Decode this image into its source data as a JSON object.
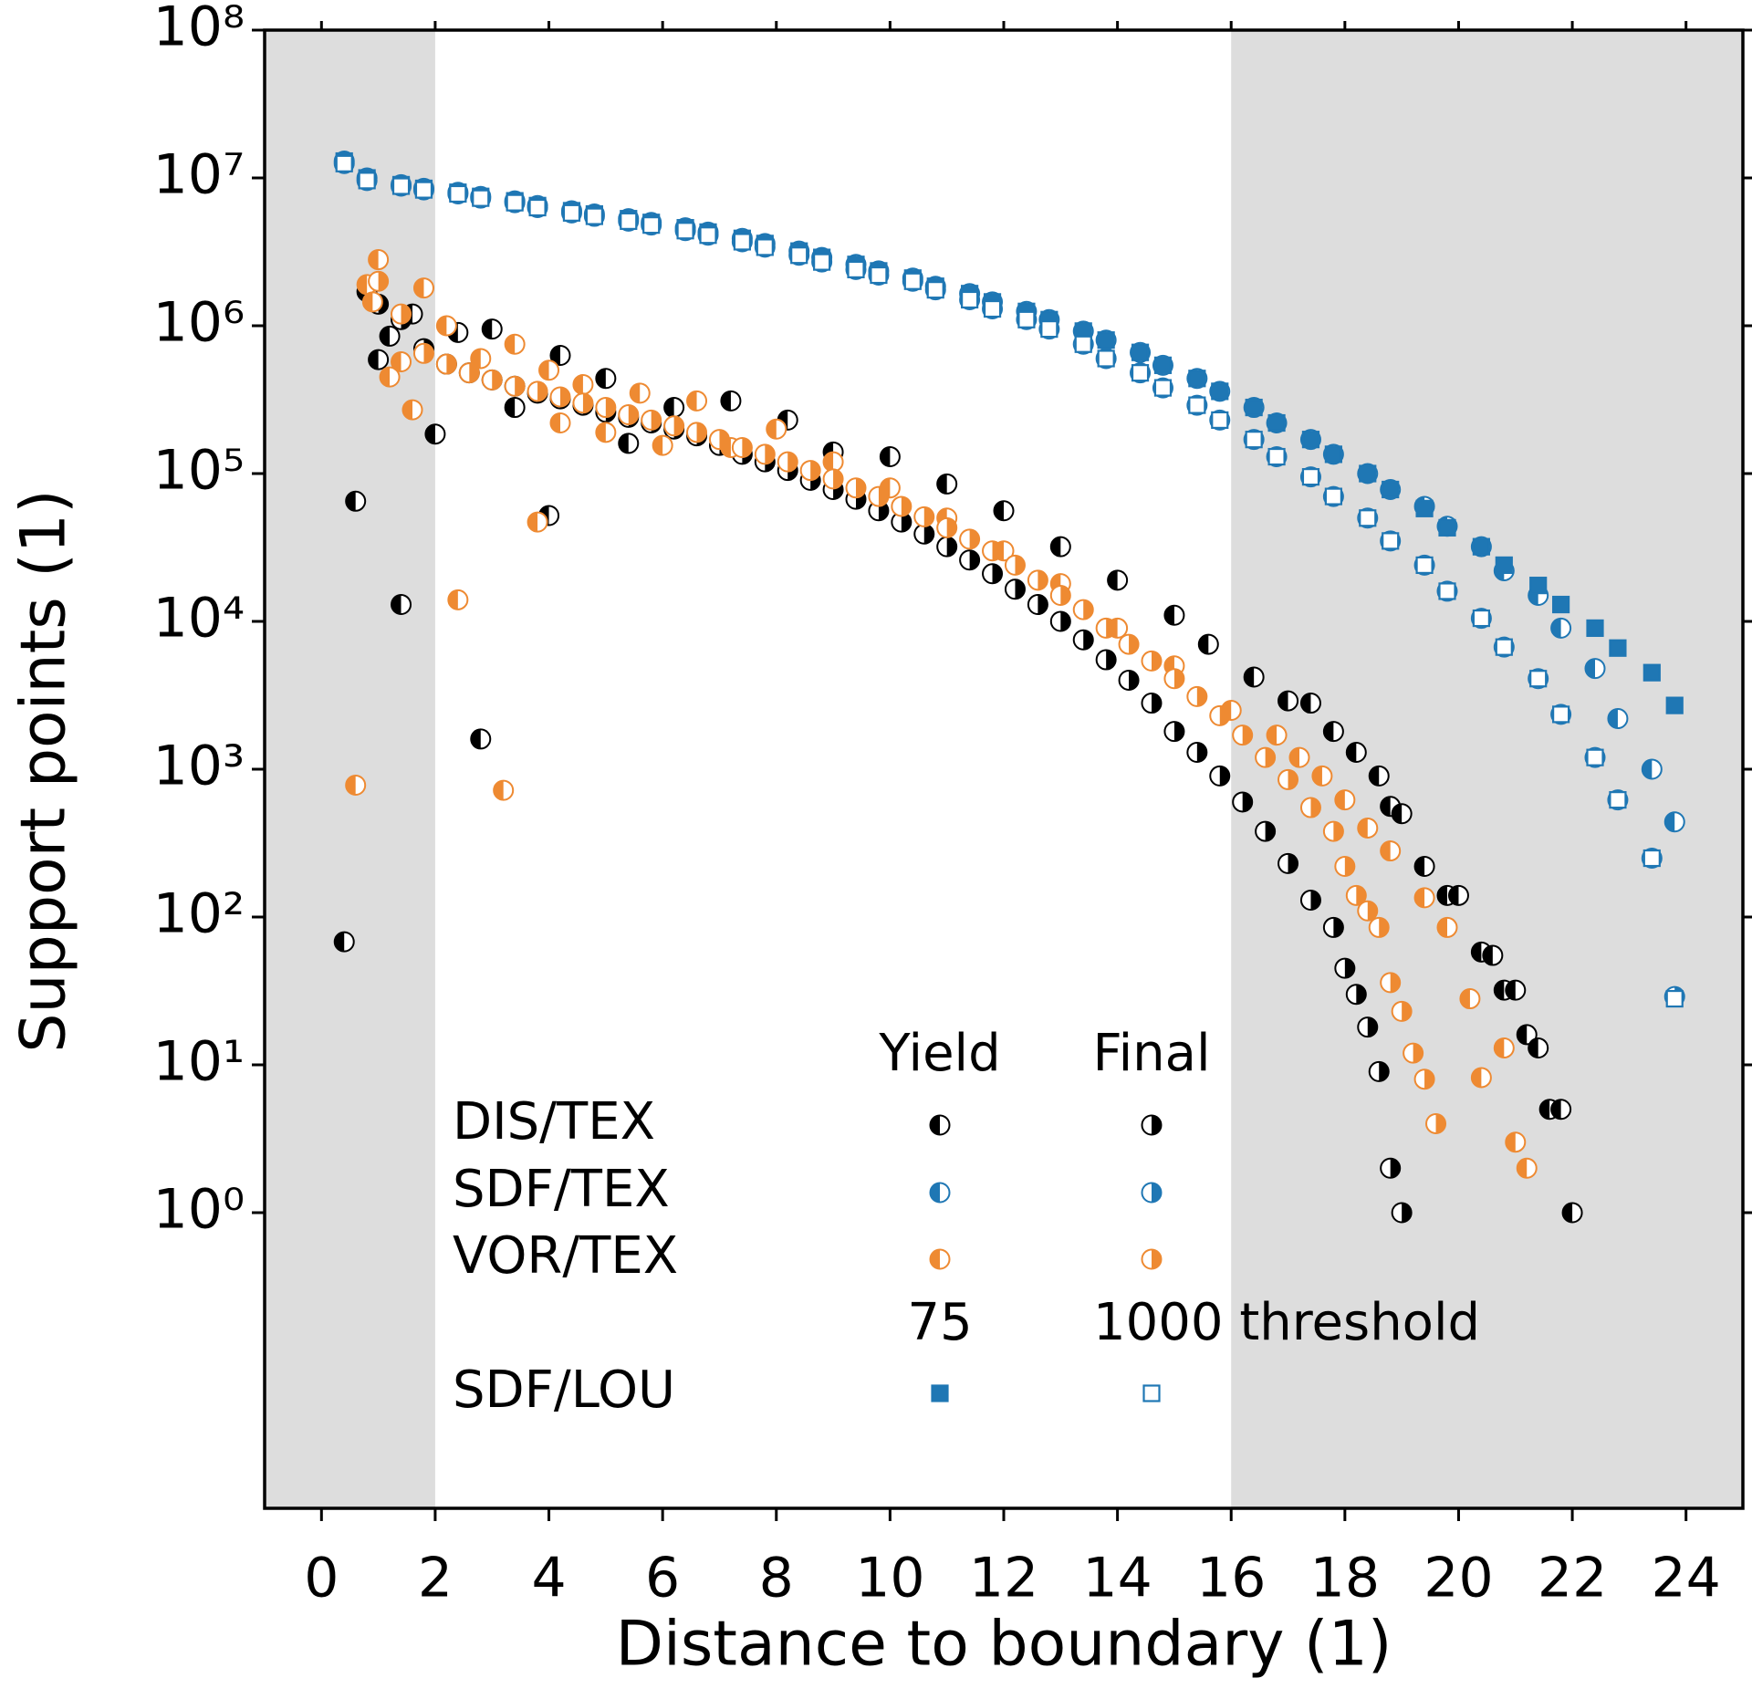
{
  "chart_data": {
    "type": "scatter",
    "xlabel": "Distance to boundary (1)",
    "ylabel": "Support points (1)",
    "xlim": [
      -1,
      25
    ],
    "ylim": [
      0.01,
      100000000
    ],
    "log_y": true,
    "xticks": [
      0,
      2,
      4,
      6,
      8,
      10,
      12,
      14,
      16,
      18,
      20,
      22,
      24
    ],
    "yticks": [
      {
        "value": 1,
        "label": "10⁰"
      },
      {
        "value": 10,
        "label": "10¹"
      },
      {
        "value": 100,
        "label": "10²"
      },
      {
        "value": 1000,
        "label": "10³"
      },
      {
        "value": 10000,
        "label": "10⁴"
      },
      {
        "value": 100000,
        "label": "10⁵"
      },
      {
        "value": 1000000,
        "label": "10⁶"
      },
      {
        "value": 10000000,
        "label": "10⁷"
      },
      {
        "value": 100000000,
        "label": "10⁸"
      }
    ],
    "shaded_regions": [
      [
        -1,
        2
      ],
      [
        16,
        25
      ]
    ],
    "shade_color": "#dddddd",
    "series": [
      {
        "name": "SDF/TEX",
        "variant": "Yield",
        "color": "#1f77b4",
        "marker": "circle",
        "fill": "left",
        "x": [
          0.4,
          0.8,
          1.4,
          1.8,
          2.4,
          2.8,
          3.4,
          3.8,
          4.4,
          4.8,
          5.4,
          5.8,
          6.4,
          6.8,
          7.4,
          7.8,
          8.4,
          8.8,
          9.4,
          9.8,
          10.4,
          10.8,
          11.4,
          11.8,
          12.4,
          12.8,
          13.4,
          13.8,
          14.4,
          14.8,
          15.4,
          15.8,
          16.4,
          16.8,
          17.4,
          17.8,
          18.4,
          18.8,
          19.4,
          19.8,
          20.4,
          20.8,
          21.4,
          21.8,
          22.4,
          22.8,
          23.4,
          23.8
        ],
        "values": [
          13000000,
          10000000,
          9000000,
          8500000,
          8000000,
          7500000,
          7000000,
          6500000,
          6000000,
          5700000,
          5300000,
          5000000,
          4600000,
          4300000,
          3900000,
          3600000,
          3200000,
          2900000,
          2600000,
          2350000,
          2100000,
          1850000,
          1650000,
          1450000,
          1250000,
          1100000,
          920000,
          800000,
          660000,
          540000,
          440000,
          360000,
          280000,
          220000,
          170000,
          135000,
          100000,
          78000,
          60000,
          44000,
          32000,
          22000,
          15000,
          9000,
          4800,
          2200,
          1000,
          440
        ]
      },
      {
        "name": "SDF/TEX",
        "variant": "Final",
        "color": "#1f77b4",
        "marker": "circle",
        "fill": "right",
        "x": [
          0.4,
          0.8,
          1.4,
          1.8,
          2.4,
          2.8,
          3.4,
          3.8,
          4.4,
          4.8,
          5.4,
          5.8,
          6.4,
          6.8,
          7.4,
          7.8,
          8.4,
          8.8,
          9.4,
          9.8,
          10.4,
          10.8,
          11.4,
          11.8,
          12.4,
          12.8,
          13.4,
          13.8,
          14.4,
          14.8,
          15.4,
          15.8,
          16.4,
          16.8,
          17.4,
          17.8,
          18.4,
          18.8,
          19.4,
          19.8,
          20.4,
          20.8,
          21.4,
          21.8,
          22.4,
          22.8,
          23.4,
          23.8
        ],
        "values": [
          12500000,
          9600000,
          8800000,
          8300000,
          7800000,
          7300000,
          6800000,
          6300000,
          5800000,
          5500000,
          5100000,
          4800000,
          4400000,
          4100000,
          3700000,
          3400000,
          3000000,
          2700000,
          2400000,
          2200000,
          2000000,
          1750000,
          1500000,
          1300000,
          1100000,
          950000,
          750000,
          600000,
          480000,
          380000,
          290000,
          230000,
          170000,
          130000,
          95000,
          70000,
          50000,
          35000,
          24000,
          16000,
          10500,
          6700,
          4100,
          2350,
          1200,
          620,
          250,
          29
        ]
      },
      {
        "name": "SDF/LOU",
        "variant": "75",
        "color": "#1f77b4",
        "marker": "square",
        "fill": "full",
        "x": [
          0.4,
          0.8,
          1.4,
          1.8,
          2.4,
          2.8,
          3.4,
          3.8,
          4.4,
          4.8,
          5.4,
          5.8,
          6.4,
          6.8,
          7.4,
          7.8,
          8.4,
          8.8,
          9.4,
          9.8,
          10.4,
          10.8,
          11.4,
          11.8,
          12.4,
          12.8,
          13.4,
          13.8,
          14.4,
          14.8,
          15.4,
          15.8,
          16.4,
          16.8,
          17.4,
          17.8,
          18.4,
          18.8,
          19.4,
          19.8,
          20.4,
          20.8,
          21.4,
          21.8,
          22.4,
          22.8,
          23.4,
          23.8
        ],
        "values": [
          13000000,
          10000000,
          9000000,
          8500000,
          8000000,
          7500000,
          7000000,
          6500000,
          6000000,
          5700000,
          5300000,
          5000000,
          4600000,
          4300000,
          3900000,
          3600000,
          3200000,
          2900000,
          2600000,
          2350000,
          2100000,
          1850000,
          1650000,
          1450000,
          1250000,
          1100000,
          920000,
          800000,
          660000,
          540000,
          440000,
          360000,
          280000,
          220000,
          170000,
          135000,
          100000,
          78000,
          58000,
          43000,
          32000,
          24000,
          17500,
          13000,
          9000,
          6600,
          4500,
          2700
        ]
      },
      {
        "name": "SDF/LOU",
        "variant": "1000 threshold",
        "color": "#1f77b4",
        "marker": "square",
        "fill": "none",
        "x": [
          0.4,
          0.8,
          1.4,
          1.8,
          2.4,
          2.8,
          3.4,
          3.8,
          4.4,
          4.8,
          5.4,
          5.8,
          6.4,
          6.8,
          7.4,
          7.8,
          8.4,
          8.8,
          9.4,
          9.8,
          10.4,
          10.8,
          11.4,
          11.8,
          12.4,
          12.8,
          13.4,
          13.8,
          14.4,
          14.8,
          15.4,
          15.8,
          16.4,
          16.8,
          17.4,
          17.8,
          18.4,
          18.8,
          19.4,
          19.8,
          20.4,
          20.8,
          21.4,
          21.8,
          22.4,
          22.8,
          23.4,
          23.8
        ],
        "values": [
          12500000,
          9600000,
          8800000,
          8300000,
          7800000,
          7300000,
          6800000,
          6300000,
          5800000,
          5500000,
          5100000,
          4800000,
          4400000,
          4100000,
          3700000,
          3400000,
          3000000,
          2700000,
          2400000,
          2200000,
          2000000,
          1750000,
          1500000,
          1300000,
          1100000,
          950000,
          750000,
          600000,
          480000,
          380000,
          290000,
          230000,
          170000,
          130000,
          95000,
          70000,
          50000,
          35000,
          24000,
          16000,
          10500,
          6700,
          4100,
          2350,
          1200,
          620,
          250,
          28
        ]
      },
      {
        "name": "DIS/TEX",
        "variant": "Yield",
        "color": "#000000",
        "marker": "circle",
        "fill": "left",
        "x": [
          0.4,
          0.6,
          0.8,
          1.0,
          1.2,
          1.4,
          1.6,
          2.0,
          2.4,
          2.8,
          3.0,
          3.4,
          4.0,
          4.2,
          5.0,
          5.4,
          6.2,
          7.2,
          8.2,
          9.0,
          10.0,
          11.0,
          12.0,
          13.0,
          14.0,
          15.0,
          15.6,
          16.4,
          17.0,
          17.4,
          17.8,
          18.2,
          18.6,
          18.8,
          19.0,
          19.4,
          19.8,
          20.0,
          20.4,
          20.6,
          20.8,
          21.0,
          21.2,
          21.4,
          21.6,
          21.8,
          22.0
        ],
        "values": [
          68,
          65000,
          1700000,
          590000,
          850000,
          13000,
          1200000,
          185000,
          900000,
          1600,
          950000,
          280000,
          52000,
          630000,
          440000,
          160000,
          280000,
          310000,
          230000,
          140000,
          130000,
          85000,
          56000,
          32000,
          19000,
          11000,
          7000,
          4200,
          2900,
          2800,
          1800,
          1300,
          900,
          560,
          500,
          220,
          140,
          140,
          58,
          55,
          32,
          32,
          16,
          13,
          5,
          5,
          1
        ]
      },
      {
        "name": "DIS/TEX",
        "variant": "Final",
        "color": "#000000",
        "marker": "circle",
        "fill": "right",
        "x": [
          1.0,
          1.4,
          1.8,
          2.2,
          2.6,
          3.0,
          3.4,
          3.8,
          4.2,
          4.6,
          5.0,
          5.4,
          5.8,
          6.2,
          6.6,
          7.0,
          7.4,
          7.8,
          8.2,
          8.6,
          9.0,
          9.4,
          9.8,
          10.2,
          10.6,
          11.0,
          11.4,
          11.8,
          12.2,
          12.6,
          13.0,
          13.4,
          13.8,
          14.2,
          14.6,
          15.0,
          15.4,
          15.8,
          16.2,
          16.6,
          17.0,
          17.4,
          17.8,
          18.0,
          18.2,
          18.4,
          18.6,
          18.8,
          19.0
        ],
        "values": [
          1400000,
          1100000,
          700000,
          550000,
          480000,
          430000,
          390000,
          350000,
          320000,
          290000,
          260000,
          240000,
          220000,
          200000,
          180000,
          155000,
          135000,
          120000,
          105000,
          90000,
          78000,
          67000,
          56000,
          47000,
          39000,
          32000,
          26000,
          21000,
          16500,
          13000,
          10000,
          7500,
          5500,
          4000,
          2800,
          1800,
          1300,
          900,
          600,
          380,
          230,
          130,
          85,
          45,
          30,
          18,
          9,
          2,
          1
        ]
      },
      {
        "name": "VOR/TEX",
        "variant": "Yield",
        "color": "#ee8a32",
        "marker": "circle",
        "fill": "left",
        "x": [
          0.6,
          0.8,
          0.9,
          1.0,
          1.2,
          1.4,
          1.6,
          1.8,
          2.2,
          2.4,
          2.8,
          3.2,
          3.4,
          3.8,
          4.0,
          4.2,
          4.6,
          5.0,
          5.6,
          6.0,
          6.6,
          7.2,
          8.0,
          9.0,
          10.0,
          11.0,
          12.0,
          13.0,
          14.0,
          15.0,
          16.0,
          16.8,
          17.2,
          17.6,
          18.0,
          18.4,
          18.8,
          19.4,
          19.8,
          20.2,
          20.4,
          20.8,
          21.0,
          21.2
        ],
        "values": [
          780,
          1900000,
          1450000,
          2800000,
          450000,
          570000,
          270000,
          1800000,
          1000000,
          14000,
          600000,
          720,
          750000,
          47000,
          500000,
          220000,
          400000,
          190000,
          350000,
          155000,
          310000,
          150000,
          200000,
          120000,
          80000,
          50000,
          30000,
          18000,
          9000,
          5000,
          2500,
          1700,
          1200,
          900,
          620,
          400,
          280,
          135,
          85,
          28,
          8.2,
          13,
          3,
          2
        ]
      },
      {
        "name": "VOR/TEX",
        "variant": "Final",
        "color": "#ee8a32",
        "marker": "circle",
        "fill": "right",
        "x": [
          1.0,
          1.4,
          1.8,
          2.2,
          2.6,
          3.0,
          3.4,
          3.8,
          4.2,
          4.6,
          5.0,
          5.4,
          5.8,
          6.2,
          6.6,
          7.0,
          7.4,
          7.8,
          8.2,
          8.6,
          9.0,
          9.4,
          9.8,
          10.2,
          10.6,
          11.0,
          11.4,
          11.8,
          12.2,
          12.6,
          13.0,
          13.4,
          13.8,
          14.2,
          14.6,
          15.0,
          15.4,
          15.8,
          16.2,
          16.6,
          17.0,
          17.4,
          17.8,
          18.0,
          18.2,
          18.4,
          18.6,
          18.8,
          19.0,
          19.2,
          19.4,
          19.6
        ],
        "values": [
          2000000,
          1200000,
          650000,
          550000,
          480000,
          430000,
          390000,
          360000,
          330000,
          300000,
          280000,
          250000,
          230000,
          210000,
          190000,
          170000,
          150000,
          135000,
          120000,
          105000,
          92000,
          80000,
          70000,
          60000,
          51000,
          43000,
          36000,
          30000,
          24000,
          19000,
          15000,
          12000,
          9000,
          7000,
          5400,
          4100,
          3100,
          2300,
          1700,
          1200,
          850,
          550,
          380,
          220,
          140,
          110,
          85,
          36,
          23,
          12,
          8,
          4
        ]
      }
    ]
  }
}
